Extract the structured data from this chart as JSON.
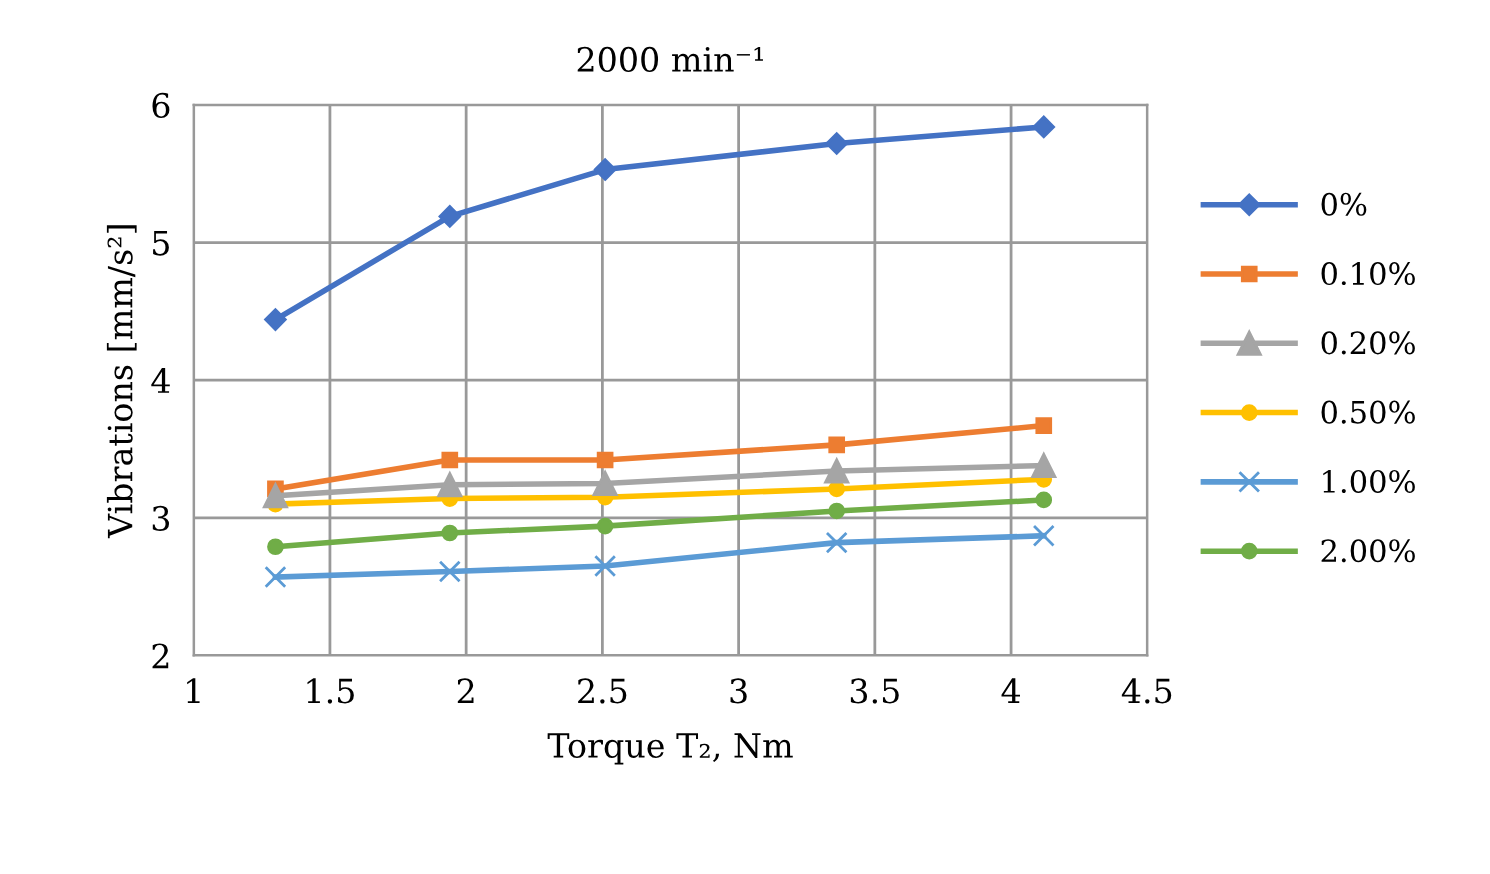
{
  "chart_data": {
    "type": "line",
    "title": "2000 min⁻¹",
    "xlabel": "Torque T₂, Nm",
    "ylabel": "Vibrations [mm/s²]",
    "x": [
      1.3,
      1.94,
      2.51,
      3.36,
      4.12
    ],
    "series": [
      {
        "name": "0%",
        "color": "#4472c4",
        "marker": "diamond",
        "values": [
          4.44,
          5.19,
          5.53,
          5.72,
          5.84
        ]
      },
      {
        "name": "0.10%",
        "color": "#ed7d31",
        "marker": "square",
        "values": [
          3.21,
          3.42,
          3.42,
          3.53,
          3.67
        ]
      },
      {
        "name": "0.20%",
        "color": "#a5a5a5",
        "marker": "triangle",
        "values": [
          3.16,
          3.24,
          3.25,
          3.34,
          3.38
        ]
      },
      {
        "name": "0.50%",
        "color": "#ffc000",
        "marker": "circle",
        "values": [
          3.1,
          3.14,
          3.15,
          3.21,
          3.28
        ]
      },
      {
        "name": "1.00%",
        "color": "#5b9bd5",
        "marker": "cross",
        "values": [
          2.57,
          2.61,
          2.65,
          2.82,
          2.87
        ]
      },
      {
        "name": "2.00%",
        "color": "#70ad47",
        "marker": "circle",
        "values": [
          2.79,
          2.89,
          2.94,
          3.05,
          3.13
        ]
      }
    ],
    "xlim": [
      1,
      4.5
    ],
    "xticks": [
      1,
      1.5,
      2,
      2.5,
      3,
      3.5,
      4,
      4.5
    ],
    "ylim": [
      2,
      6
    ],
    "yticks": [
      2,
      3,
      4,
      5,
      6
    ],
    "grid": true,
    "legend": "right",
    "line_style": "solid"
  }
}
